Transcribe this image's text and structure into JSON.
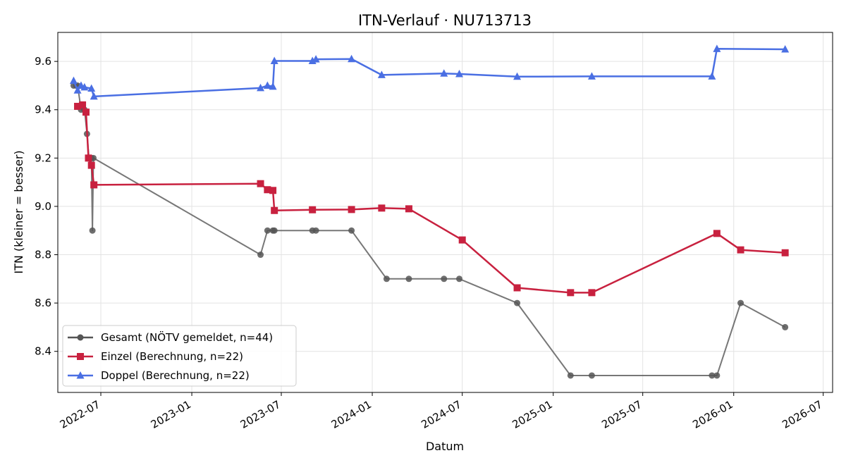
{
  "chart_data": {
    "type": "line",
    "title": "ITN-Verlauf · NU713713",
    "xlabel": "Datum",
    "ylabel": "ITN  (kleiner = besser)",
    "xlim": [
      "2022-04-05",
      "2026-07-20"
    ],
    "ylim": [
      8.23,
      9.72
    ],
    "yticks": [
      8.4,
      8.6,
      8.8,
      9.0,
      9.2,
      9.4,
      9.6
    ],
    "xticks": [
      "2022-07-01",
      "2023-01-01",
      "2023-07-01",
      "2024-01-01",
      "2024-07-01",
      "2025-01-01",
      "2025-07-01",
      "2026-01-01",
      "2026-07-01"
    ],
    "xtick_labels": [
      "2022-07",
      "2023-01",
      "2023-07",
      "2024-01",
      "2024-07",
      "2025-01",
      "2025-07",
      "2026-01",
      "2026-07"
    ],
    "grid": true,
    "legend": "lower-left",
    "series": [
      {
        "name": "Gesamt (NÖTV gemeldet, n=44)",
        "color": "#555555",
        "marker": "circle",
        "points": [
          [
            "2022-05-07",
            9.5
          ],
          [
            "2022-05-12",
            9.5
          ],
          [
            "2022-05-15",
            9.5
          ],
          [
            "2022-05-22",
            9.4
          ],
          [
            "2022-05-29",
            9.4
          ],
          [
            "2022-06-03",
            9.3
          ],
          [
            "2022-06-07",
            9.2
          ],
          [
            "2022-06-12",
            9.2
          ],
          [
            "2022-06-14",
            8.9
          ],
          [
            "2022-06-16",
            9.2
          ],
          [
            "2023-05-20",
            8.8
          ],
          [
            "2023-06-03",
            8.9
          ],
          [
            "2023-06-14",
            8.9
          ],
          [
            "2023-06-17",
            8.9
          ],
          [
            "2023-09-02",
            8.9
          ],
          [
            "2023-09-09",
            8.9
          ],
          [
            "2023-11-20",
            8.9
          ],
          [
            "2024-01-30",
            8.7
          ],
          [
            "2024-03-15",
            8.7
          ],
          [
            "2024-05-25",
            8.7
          ],
          [
            "2024-06-25",
            8.7
          ],
          [
            "2024-10-20",
            8.6
          ],
          [
            "2025-02-05",
            8.3
          ],
          [
            "2025-03-20",
            8.3
          ],
          [
            "2025-11-18",
            8.3
          ],
          [
            "2025-11-28",
            8.3
          ],
          [
            "2026-01-15",
            8.6
          ],
          [
            "2026-04-15",
            8.5
          ]
        ]
      },
      {
        "name": "Einzel (Berechnung, n=22)",
        "color": "#c8213f",
        "marker": "square",
        "points": [
          [
            "2022-05-15",
            9.414
          ],
          [
            "2022-05-25",
            9.42
          ],
          [
            "2022-06-01",
            9.39
          ],
          [
            "2022-06-06",
            9.2
          ],
          [
            "2022-06-12",
            9.17
          ],
          [
            "2022-06-17",
            9.089
          ],
          [
            "2023-05-20",
            9.094
          ],
          [
            "2023-06-03",
            9.069
          ],
          [
            "2023-06-14",
            9.066
          ],
          [
            "2023-06-17",
            8.983
          ],
          [
            "2023-09-02",
            8.986
          ],
          [
            "2023-11-20",
            8.987
          ],
          [
            "2024-01-20",
            8.993
          ],
          [
            "2024-03-15",
            8.99
          ],
          [
            "2024-07-01",
            8.861
          ],
          [
            "2024-10-20",
            8.663
          ],
          [
            "2025-02-05",
            8.643
          ],
          [
            "2025-03-20",
            8.643
          ],
          [
            "2025-11-28",
            8.888
          ],
          [
            "2026-01-15",
            8.82
          ],
          [
            "2026-04-15",
            8.808
          ]
        ]
      },
      {
        "name": "Doppel (Berechnung, n=22)",
        "color": "#4a6fe3",
        "marker": "triangle",
        "points": [
          [
            "2022-05-07",
            9.52
          ],
          [
            "2022-05-15",
            9.48
          ],
          [
            "2022-05-22",
            9.5
          ],
          [
            "2022-05-29",
            9.493
          ],
          [
            "2022-06-12",
            9.488
          ],
          [
            "2022-06-17",
            9.455
          ],
          [
            "2023-05-20",
            9.49
          ],
          [
            "2023-06-03",
            9.5
          ],
          [
            "2023-06-14",
            9.496
          ],
          [
            "2023-06-17",
            9.602
          ],
          [
            "2023-09-02",
            9.602
          ],
          [
            "2023-09-09",
            9.609
          ],
          [
            "2023-11-20",
            9.61
          ],
          [
            "2024-01-20",
            9.544
          ],
          [
            "2024-05-25",
            9.55
          ],
          [
            "2024-06-25",
            9.548
          ],
          [
            "2024-10-20",
            9.537
          ],
          [
            "2025-03-20",
            9.538
          ],
          [
            "2025-11-18",
            9.538
          ],
          [
            "2025-11-28",
            9.652
          ],
          [
            "2026-04-15",
            9.65
          ]
        ]
      }
    ]
  }
}
